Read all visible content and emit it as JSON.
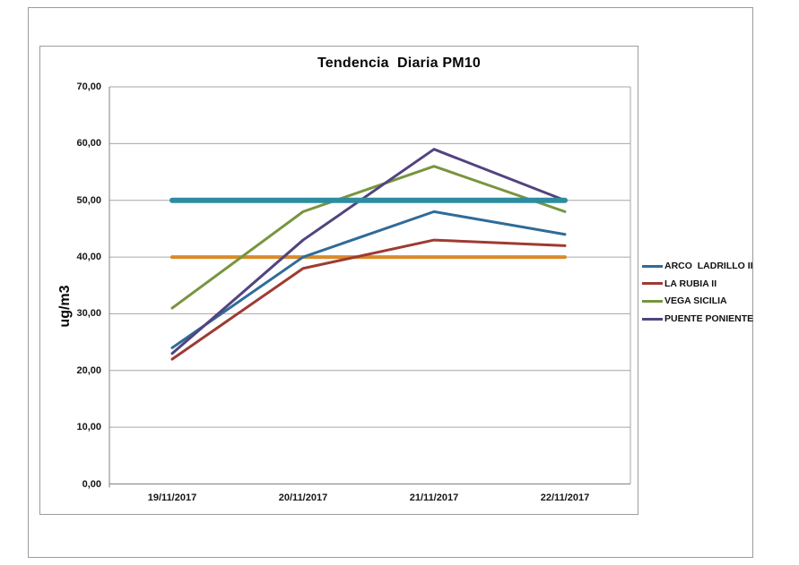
{
  "chart_data": {
    "type": "line",
    "title": "Tendencia  Diaria PM10",
    "ylabel": "ug/m3",
    "categories": [
      "19/11/2017",
      "20/11/2017",
      "21/11/2017",
      "22/11/2017"
    ],
    "series": [
      {
        "name": "ARCO  LADRILLO II",
        "color": "#2F6B99",
        "width": 3,
        "values": [
          24,
          40,
          48,
          44
        ]
      },
      {
        "name": "LA RUBIA II",
        "color": "#9E3B32",
        "width": 3,
        "values": [
          22,
          38,
          43,
          42
        ]
      },
      {
        "name": "VEGA SICILIA",
        "color": "#78953E",
        "width": 3,
        "values": [
          31,
          48,
          56,
          48
        ]
      },
      {
        "name": "PUENTE PONIENTE",
        "color": "#52437F",
        "width": 3,
        "values": [
          23,
          43,
          59,
          50
        ]
      }
    ],
    "reference_lines": [
      {
        "value": 50,
        "color": "#2E8CA1",
        "width": 6,
        "above_series": true
      },
      {
        "value": 40,
        "color": "#D98A29",
        "width": 4,
        "above_series": false
      }
    ],
    "ylim": [
      0,
      70
    ],
    "y_tick_step": 10,
    "y_tick_labels": [
      "0,00",
      "10,00",
      "20,00",
      "30,00",
      "40,00",
      "50,00",
      "60,00",
      "70,00"
    ],
    "grid": true,
    "legend_position": "right"
  },
  "styles": {
    "grid_color": "#A6A6A6",
    "axis_color": "#808080",
    "frame_color": "#9C9C9C",
    "text_color": "#161616",
    "background": "#FFFFFF"
  }
}
